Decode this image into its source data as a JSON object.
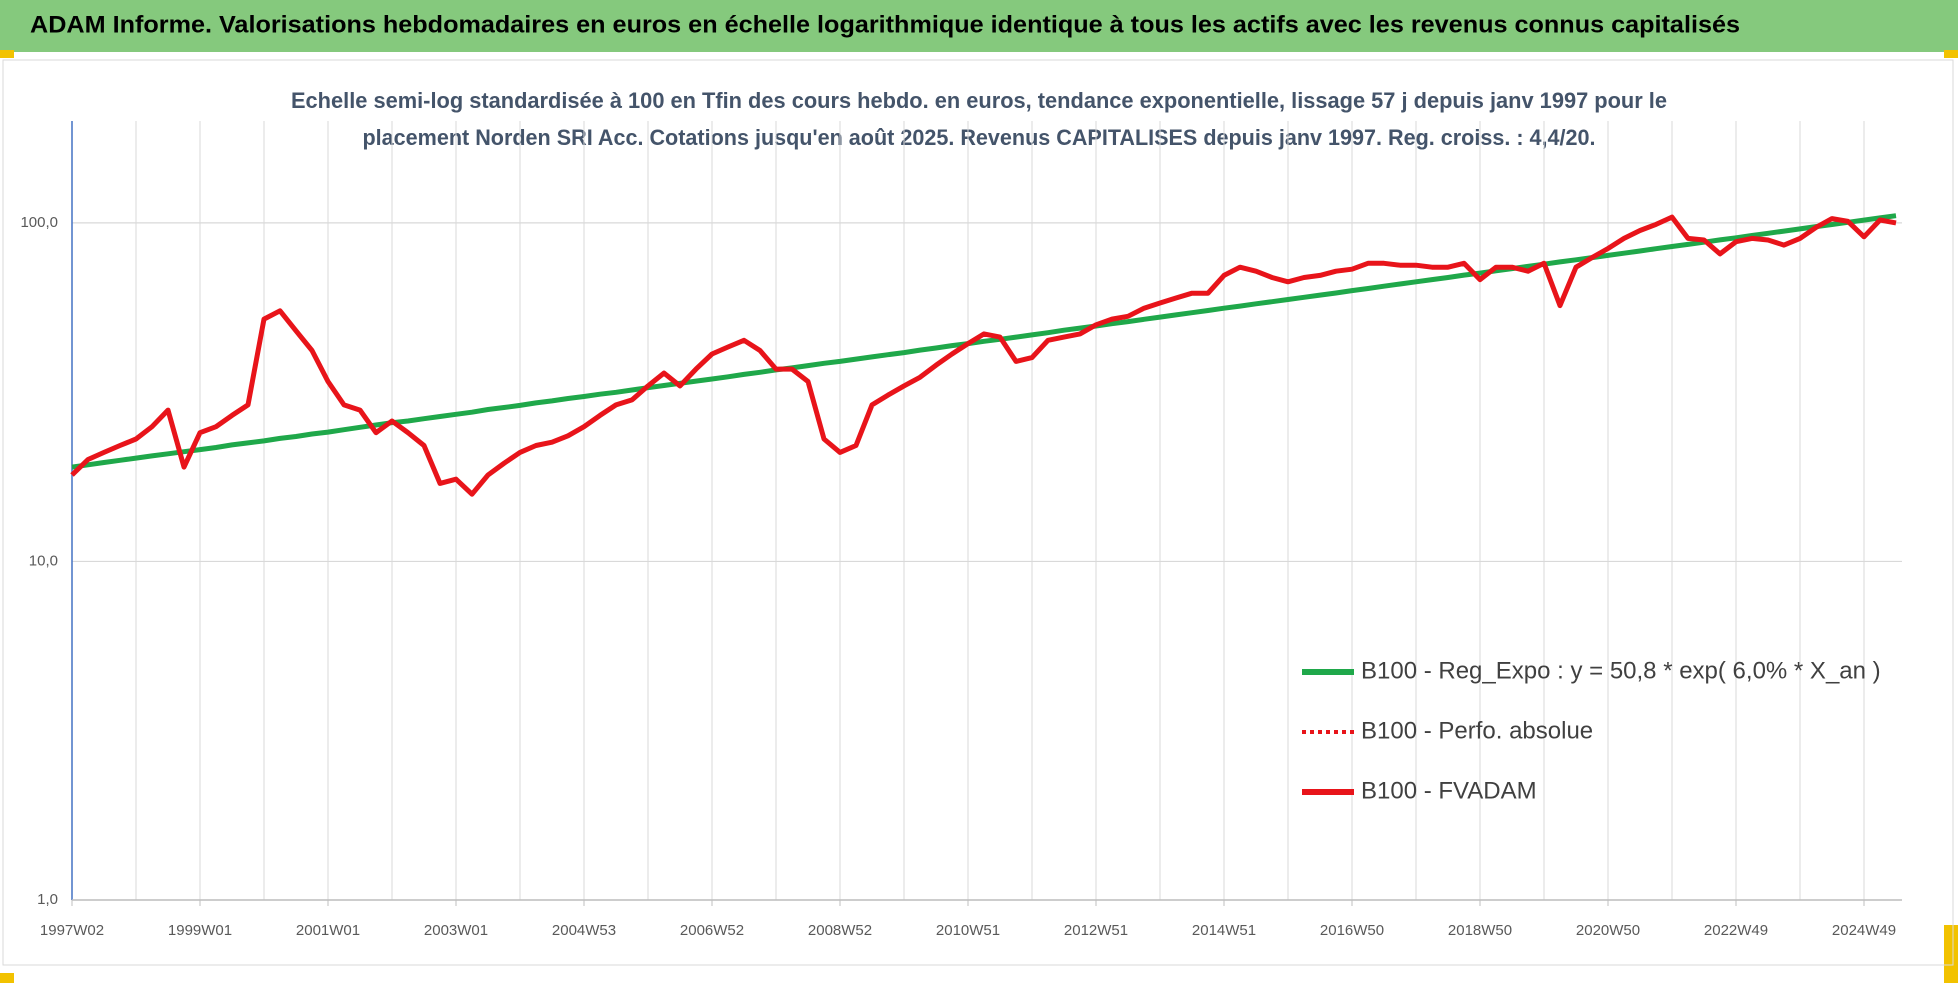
{
  "chart_data": {
    "type": "line",
    "header": "ADAM Informe. Valorisations hebdomadaires en euros en échelle logarithmique identique à tous les actifs avec les revenus connus capitalisés",
    "subtitle": [
      "Echelle semi-log standardisée à 100 en Tfin des cours hebdo. en euros, tendance exponentielle, lissage 57 j depuis janv 1997 pour le",
      "placement Norden SRI Acc. Cotations jusqu'en août 2025. Revenus CAPITALISES depuis janv 1997. Reg. croiss. : 4,4/20."
    ],
    "categories": [
      "1997W02",
      null,
      null,
      null,
      null,
      null,
      null,
      null,
      "1999W01",
      null,
      null,
      null,
      null,
      null,
      null,
      null,
      "2001W01",
      null,
      null,
      null,
      null,
      null,
      null,
      null,
      "2003W01",
      null,
      null,
      null,
      null,
      null,
      null,
      null,
      "2004W53",
      null,
      null,
      null,
      null,
      null,
      null,
      null,
      "2006W52",
      null,
      null,
      null,
      null,
      null,
      null,
      null,
      "2008W52",
      null,
      null,
      null,
      null,
      null,
      null,
      null,
      "2010W51",
      null,
      null,
      null,
      null,
      null,
      null,
      null,
      "2012W51",
      null,
      null,
      null,
      null,
      null,
      null,
      null,
      "2014W51",
      null,
      null,
      null,
      null,
      null,
      null,
      null,
      "2016W50",
      null,
      null,
      null,
      null,
      null,
      null,
      null,
      "2018W50",
      null,
      null,
      null,
      null,
      null,
      null,
      null,
      "2020W50",
      null,
      null,
      null,
      null,
      null,
      null,
      null,
      "2022W49",
      null,
      null,
      null,
      null,
      null,
      null,
      null,
      "2024W49",
      null,
      null
    ],
    "series": [
      {
        "name": "B100 - Reg_Expo : y = 50,8 * exp( 6,0% *  X_an )",
        "color": "#1fa84a",
        "style": "solid",
        "values": [
          19.0,
          19.3,
          19.6,
          19.9,
          20.2,
          20.5,
          20.8,
          21.1,
          21.4,
          21.7,
          22.1,
          22.4,
          22.7,
          23.1,
          23.4,
          23.8,
          24.1,
          24.5,
          24.9,
          25.3,
          25.7,
          26.0,
          26.4,
          26.8,
          27.2,
          27.6,
          28.1,
          28.5,
          28.9,
          29.4,
          29.8,
          30.3,
          30.7,
          31.2,
          31.6,
          32.1,
          32.6,
          33.1,
          33.6,
          34.1,
          34.6,
          35.1,
          35.7,
          36.2,
          36.8,
          37.3,
          37.9,
          38.5,
          39.0,
          39.6,
          40.2,
          40.8,
          41.4,
          42.1,
          42.7,
          43.4,
          44.0,
          44.7,
          45.3,
          46.0,
          46.7,
          47.4,
          48.2,
          48.9,
          49.6,
          50.4,
          51.1,
          51.9,
          52.7,
          53.5,
          54.3,
          55.1,
          56.0,
          56.8,
          57.7,
          58.5,
          59.4,
          60.3,
          61.2,
          62.1,
          63.1,
          64.0,
          65.0,
          66.0,
          67.0,
          68.0,
          69.0,
          70.1,
          71.1,
          72.2,
          73.3,
          74.4,
          75.5,
          76.7,
          77.8,
          79.0,
          80.2,
          81.4,
          82.6,
          83.9,
          85.2,
          86.4,
          87.7,
          89.1,
          90.4,
          91.8,
          93.2,
          94.6,
          96.0,
          97.5,
          98.9,
          100.4,
          101.9,
          103.5,
          105.0
        ]
      },
      {
        "name": "B100 - Perfo. absolue",
        "color": "#e8141a",
        "style": "dotted"
      },
      {
        "name": "B100 - FVADAM",
        "color": "#e8141a",
        "style": "solid",
        "values": [
          18,
          20,
          21,
          22,
          23,
          25,
          28,
          19,
          24,
          25,
          27,
          29,
          52,
          55,
          48,
          42,
          34,
          29,
          28,
          24,
          26,
          24,
          22,
          17,
          17.5,
          15.8,
          18,
          19.5,
          21,
          22,
          22.5,
          23.5,
          25,
          27,
          29,
          30,
          33,
          36,
          33,
          37,
          41,
          43,
          45,
          42,
          37,
          37,
          34,
          23,
          21,
          22,
          29,
          31,
          33,
          35,
          38,
          41,
          44,
          47,
          46,
          39,
          40,
          45,
          46,
          47,
          50,
          52,
          53,
          56,
          58,
          60,
          62,
          62,
          70,
          74,
          72,
          69,
          67,
          69,
          70,
          72,
          73,
          76,
          76,
          75,
          75,
          74,
          74,
          76,
          68,
          74,
          74,
          72,
          76,
          57,
          74,
          79,
          84,
          90,
          95,
          99,
          104,
          90,
          89,
          81,
          88,
          90,
          89,
          86,
          90,
          97,
          103,
          101,
          91,
          102,
          100
        ]
      }
    ],
    "ylog": true,
    "ylim": [
      1,
      200
    ],
    "yticks": [
      {
        "value": 1,
        "label": "1,0"
      },
      {
        "value": 10,
        "label": "10,0"
      },
      {
        "value": 100,
        "label": "100,0"
      }
    ],
    "grid": true
  }
}
